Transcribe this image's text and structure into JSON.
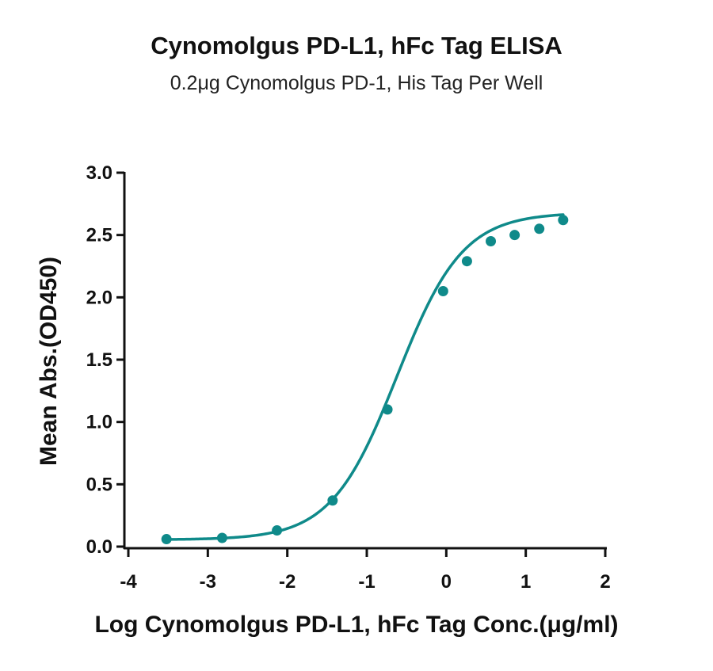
{
  "chart_data": {
    "type": "scatter",
    "title": "Cynomolgus PD-L1, hFc Tag ELISA",
    "subtitle": "0.2μg Cynomolgus PD-1, His Tag Per Well",
    "xlabel": "Log Cynomolgus PD-L1, hFc Tag Conc.(μg/ml)",
    "ylabel": "Mean Abs.(OD450)",
    "xlim": [
      -4,
      2
    ],
    "ylim": [
      0,
      3
    ],
    "xticks": [
      -4,
      -3,
      -2,
      -1,
      0,
      1,
      2
    ],
    "xtick_labels": [
      "-4",
      "-3",
      "-2",
      "-1",
      "0",
      "1",
      "2"
    ],
    "yticks": [
      0,
      0.5,
      1,
      1.5,
      2,
      2.5,
      3
    ],
    "ytick_labels": [
      "0.0",
      "0.5",
      "1.0",
      "1.5",
      "2.0",
      "2.5",
      "3.0"
    ],
    "grid": false,
    "series": [
      {
        "color": "#0f8a8a",
        "x": [
          -3.52,
          -2.82,
          -2.13,
          -1.43,
          -0.74,
          -0.04,
          0.26,
          0.56,
          0.86,
          1.17,
          1.47
        ],
        "y": [
          0.06,
          0.07,
          0.13,
          0.37,
          1.1,
          2.05,
          2.29,
          2.45,
          2.5,
          2.55,
          2.62
        ],
        "fit": {
          "model": "4PL",
          "bottom": 0.055,
          "top": 2.68,
          "log_ec50": -0.62,
          "hill": 1.05
        }
      }
    ]
  }
}
